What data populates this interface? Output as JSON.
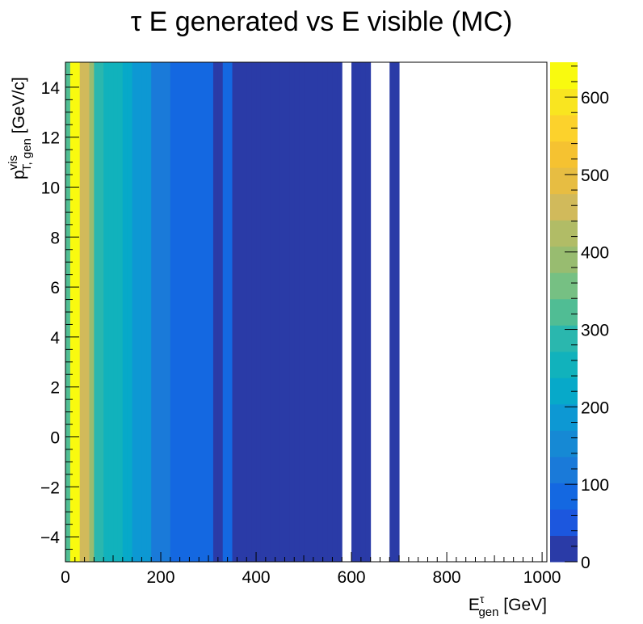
{
  "chart_data": {
    "type": "heatmap",
    "title": "τ E generated vs E visible (MC)",
    "xlabel": {
      "main": "E",
      "sup": "τ",
      "sub": "gen",
      "unit": " [GeV]"
    },
    "ylabel": {
      "main": "p",
      "sup": "vis",
      "sub": "T, gen",
      "unit": " [GeV/c]"
    },
    "xlim": [
      0,
      1010
    ],
    "ylim": [
      -5,
      15
    ],
    "x_ticks": [
      0,
      200,
      400,
      600,
      800,
      1000
    ],
    "y_ticks": [
      -4,
      -2,
      0,
      2,
      4,
      6,
      8,
      10,
      12,
      14
    ],
    "z_ticks": [
      0,
      100,
      200,
      300,
      400,
      500,
      600
    ],
    "zlim": [
      0,
      645
    ],
    "palette": [
      "#2a3ba7",
      "#1c57de",
      "#1468e1",
      "#1a7ad9",
      "#1689d4",
      "#0d98d3",
      "#07a9c9",
      "#11b2bc",
      "#2ab7ae",
      "#50bd94",
      "#76c083",
      "#98bc70",
      "#b1bc66",
      "#d1ba5b",
      "#e7bd42",
      "#f5c231",
      "#fcd22c",
      "#f9e520",
      "#f9fa0f"
    ],
    "x_bin_edges": [
      0,
      10,
      20,
      30,
      40,
      50,
      60,
      70,
      80,
      90,
      100,
      110,
      120,
      130,
      140,
      150,
      160,
      170,
      180,
      190,
      200,
      210,
      220,
      230,
      240,
      250,
      260,
      270,
      280,
      290,
      300,
      310,
      320,
      330,
      340,
      350,
      360,
      370,
      380,
      390,
      400,
      410,
      420,
      430,
      440,
      450,
      460,
      470,
      480,
      490,
      500,
      510,
      520,
      530,
      540,
      550,
      560,
      570,
      580,
      590,
      600,
      610,
      620,
      630,
      640,
      650,
      660,
      670,
      680,
      690
    ],
    "bin_values": [
      330,
      650,
      620,
      470,
      470,
      380,
      300,
      300,
      270,
      270,
      250,
      250,
      220,
      220,
      190,
      190,
      170,
      170,
      130,
      130,
      130,
      130,
      80,
      80,
      80,
      80,
      80,
      80,
      80,
      80,
      80,
      30,
      30,
      80,
      80,
      30,
      30,
      30,
      30,
      30,
      30,
      30,
      30,
      30,
      30,
      30,
      30,
      30,
      30,
      30,
      30,
      30,
      30,
      30,
      30,
      30,
      30,
      30,
      null,
      null,
      30,
      30,
      30,
      30,
      null,
      null,
      null,
      null,
      30,
      30
    ]
  }
}
